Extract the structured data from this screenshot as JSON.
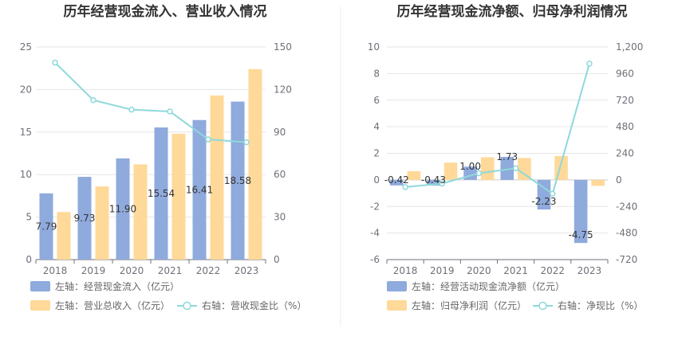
{
  "chart_data": [
    {
      "type": "bar",
      "title": "历年经营现金流入、营业收入情况",
      "categories": [
        "2018",
        "2019",
        "2020",
        "2021",
        "2022",
        "2023"
      ],
      "series": [
        {
          "name": "左轴：经营现金流入（亿元）",
          "axis": "left",
          "kind": "bar",
          "color": "#8faadc",
          "values": [
            7.79,
            9.73,
            11.9,
            15.54,
            16.41,
            18.58
          ],
          "labels": [
            "7.79",
            "9.73",
            "11.90",
            "15.54",
            "16.41",
            "18.58"
          ]
        },
        {
          "name": "左轴：营业总收入（亿元）",
          "axis": "left",
          "kind": "bar",
          "color": "#ffd999",
          "values": [
            5.6,
            8.6,
            11.2,
            14.8,
            19.3,
            22.4
          ]
        },
        {
          "name": "右轴：营收现金比（%）",
          "axis": "right",
          "kind": "line",
          "color": "#8ed8dc",
          "values": [
            139,
            112.5,
            105.8,
            104.5,
            84.8,
            82.8
          ]
        }
      ],
      "left_axis": {
        "min": 0,
        "max": 25,
        "ticks": [
          "0",
          "5",
          "10",
          "15",
          "20",
          "25"
        ]
      },
      "right_axis": {
        "min": 0,
        "max": 150,
        "ticks": [
          "0",
          "30",
          "60",
          "90",
          "120",
          "150"
        ]
      },
      "grid": true,
      "legend_position": "bottom-left"
    },
    {
      "type": "bar",
      "title": "历年经营现金流净额、归母净利润情况",
      "categories": [
        "2018",
        "2019",
        "2020",
        "2021",
        "2022",
        "2023"
      ],
      "series": [
        {
          "name": "左轴：经营活动现金流净额（亿元）",
          "axis": "left",
          "kind": "bar",
          "color": "#8faadc",
          "values": [
            -0.42,
            -0.43,
            1.0,
            1.73,
            -2.23,
            -4.75
          ],
          "labels": [
            "-0.42",
            "-0.43",
            "1.00",
            "1.73",
            "-2.23",
            "-4.75"
          ]
        },
        {
          "name": "左轴：归母净利润（亿元）",
          "axis": "left",
          "kind": "bar",
          "color": "#ffd999",
          "values": [
            0.65,
            1.3,
            1.7,
            1.65,
            1.8,
            -0.45
          ]
        },
        {
          "name": "右轴：净现比（%）",
          "axis": "right",
          "kind": "line",
          "color": "#8ed8dc",
          "values": [
            -65,
            -33,
            60,
            105,
            -125,
            1050
          ]
        }
      ],
      "left_axis": {
        "min": -6,
        "max": 10,
        "ticks": [
          "-6",
          "-4",
          "-2",
          "0",
          "2",
          "4",
          "6",
          "8",
          "10"
        ]
      },
      "right_axis": {
        "min": -720,
        "max": 1200,
        "ticks": [
          "-720",
          "-480",
          "-240",
          "0",
          "240",
          "480",
          "720",
          "960",
          "1,200"
        ]
      },
      "grid": true,
      "legend_position": "bottom-left"
    }
  ]
}
